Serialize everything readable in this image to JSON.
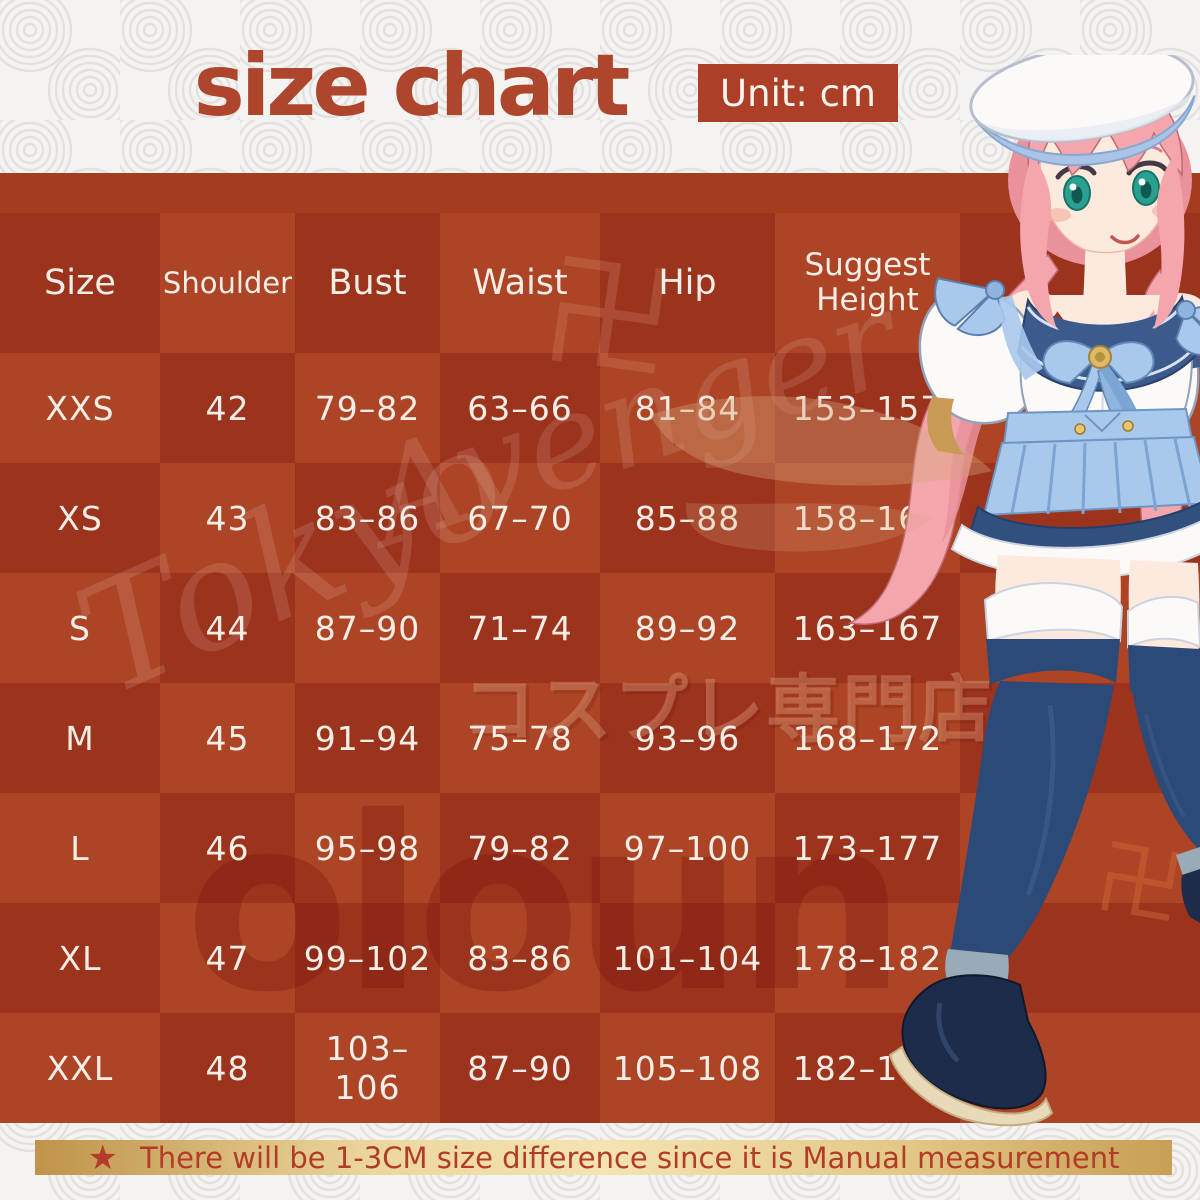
{
  "header": {
    "title": "size chart",
    "unit_label": "Unit: cm"
  },
  "table": {
    "columns": [
      "Size",
      "Shoulder",
      "Bust",
      "Waist",
      "Hip",
      "Suggest Height"
    ],
    "rows": [
      [
        "XXS",
        "42",
        "79–82",
        "63–66",
        "81–84",
        "153–157"
      ],
      [
        "XS",
        "43",
        "83–86",
        "67–70",
        "85–88",
        "158–162"
      ],
      [
        "S",
        "44",
        "87–90",
        "71–74",
        "89–92",
        "163–167"
      ],
      [
        "M",
        "45",
        "91–94",
        "75–78",
        "93–96",
        "168–172"
      ],
      [
        "L",
        "46",
        "95–98",
        "79–82",
        "97–100",
        "173–177"
      ],
      [
        "XL",
        "47",
        "99–102",
        "83–86",
        "101–104",
        "178–182"
      ],
      [
        "XXL",
        "48",
        "103–106",
        "87–90",
        "105–108",
        "182–186"
      ]
    ]
  },
  "footer": {
    "star_icon": "★",
    "note": "There will be 1-3CM size difference since it is Manual measurement"
  },
  "watermarks": {
    "katakana": "コスプレ専門店",
    "logo": "oloun",
    "script_1": "Tokyo",
    "script_2": "Avenger",
    "manji": "卍"
  },
  "colors": {
    "accent_red": "#ae452d",
    "panel_red": "#a43c20",
    "cell_dark": "#9b331d",
    "cell_light": "#ac4425",
    "gold_bar": "#ecd79e",
    "note_text": "#b23c28",
    "table_text": "#f6eee6"
  },
  "chart_data": {
    "type": "table",
    "title": "size chart",
    "unit": "cm",
    "columns": [
      "Size",
      "Shoulder",
      "Bust",
      "Waist",
      "Hip",
      "Suggest Height"
    ],
    "rows": [
      [
        "XXS",
        "42",
        "79–82",
        "63–66",
        "81–84",
        "153–157"
      ],
      [
        "XS",
        "43",
        "83–86",
        "67–70",
        "85–88",
        "158–162"
      ],
      [
        "S",
        "44",
        "87–90",
        "71–74",
        "89–92",
        "163–167"
      ],
      [
        "M",
        "45",
        "91–94",
        "75–78",
        "93–96",
        "168–172"
      ],
      [
        "L",
        "46",
        "95–98",
        "79–82",
        "97–100",
        "173–177"
      ],
      [
        "XL",
        "47",
        "99–102",
        "83–86",
        "101–104",
        "178–182"
      ],
      [
        "XXL",
        "48",
        "103–106",
        "87–90",
        "105–108",
        "182–186"
      ]
    ]
  }
}
